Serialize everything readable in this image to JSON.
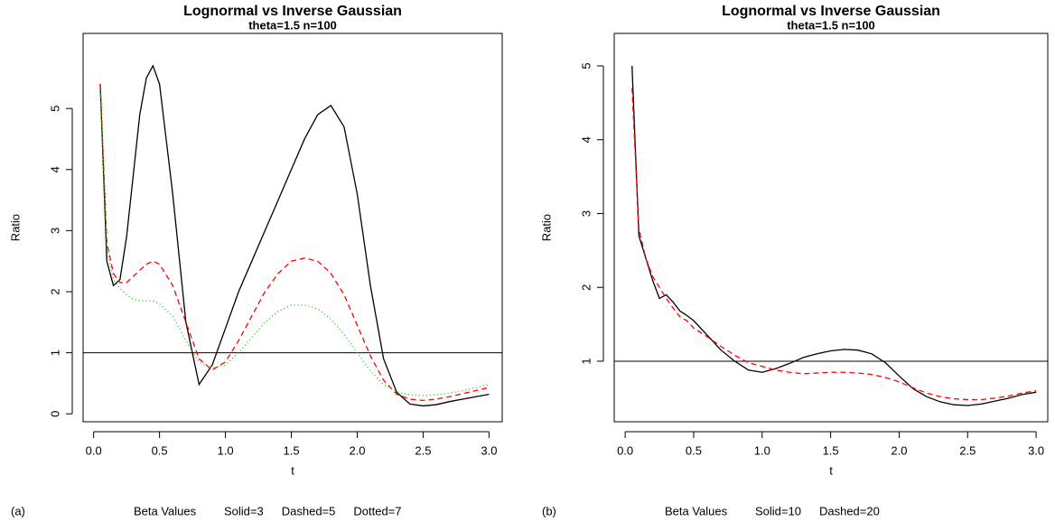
{
  "chart_data": [
    {
      "type": "line",
      "title": "Lognormal vs Inverse Gaussian",
      "subtitle": "theta=1.5    n=100",
      "x_label": "t",
      "y_label": "Ratio",
      "panel_label": "(a)",
      "legend_title": "Beta Values",
      "x": [
        0.05,
        0.1,
        0.15,
        0.2,
        0.25,
        0.3,
        0.35,
        0.4,
        0.45,
        0.5,
        0.6,
        0.7,
        0.8,
        0.9,
        1.0,
        1.1,
        1.2,
        1.3,
        1.4,
        1.5,
        1.6,
        1.7,
        1.8,
        1.9,
        2.0,
        2.1,
        2.2,
        2.3,
        2.4,
        2.5,
        2.6,
        2.7,
        2.8,
        2.9,
        3.0
      ],
      "series": [
        {
          "name": "Solid=3",
          "color": "#000000",
          "line_style": "solid",
          "values": [
            5.4,
            2.5,
            2.1,
            2.2,
            2.9,
            3.9,
            4.9,
            5.5,
            5.7,
            5.4,
            3.6,
            1.5,
            0.48,
            0.8,
            1.4,
            2.0,
            2.5,
            3.0,
            3.5,
            4.0,
            4.5,
            4.9,
            5.05,
            4.7,
            3.6,
            2.1,
            0.9,
            0.35,
            0.16,
            0.13,
            0.15,
            0.2,
            0.24,
            0.28,
            0.32
          ]
        },
        {
          "name": "Dashed=5",
          "color": "#ff0000",
          "line_style": "dashed",
          "values": [
            5.4,
            2.8,
            2.3,
            2.15,
            2.15,
            2.25,
            2.35,
            2.45,
            2.5,
            2.45,
            2.1,
            1.5,
            0.9,
            0.72,
            0.85,
            1.2,
            1.6,
            2.0,
            2.3,
            2.5,
            2.55,
            2.5,
            2.3,
            1.95,
            1.45,
            0.95,
            0.55,
            0.32,
            0.24,
            0.22,
            0.24,
            0.28,
            0.33,
            0.38,
            0.43
          ]
        },
        {
          "name": "Dotted=7",
          "color": "#00cd00",
          "line_style": "dotted",
          "values": [
            5.3,
            2.7,
            2.2,
            2.05,
            1.95,
            1.88,
            1.85,
            1.85,
            1.85,
            1.8,
            1.6,
            1.2,
            0.85,
            0.75,
            0.8,
            1.0,
            1.25,
            1.5,
            1.68,
            1.78,
            1.78,
            1.72,
            1.55,
            1.3,
            1.0,
            0.7,
            0.48,
            0.36,
            0.31,
            0.3,
            0.31,
            0.34,
            0.38,
            0.43,
            0.48
          ]
        }
      ],
      "hline": 1,
      "xlim": [
        -0.08,
        3.1
      ],
      "ylim": [
        -0.13,
        6.23
      ],
      "xticks": [
        {
          "value": 0,
          "label": "0.0"
        },
        0.5,
        {
          "value": 1,
          "label": "1.0"
        },
        1.5,
        {
          "value": 2,
          "label": "2.0"
        },
        2.5,
        {
          "value": 3,
          "label": "3.0"
        }
      ],
      "yticks": [
        0,
        1,
        2,
        3,
        4,
        5
      ]
    },
    {
      "type": "line",
      "title": "Lognormal vs Inverse Gaussian",
      "subtitle": "theta=1.5    n=100",
      "x_label": "t",
      "y_label": "Ratio",
      "panel_label": "(b)",
      "legend_title": "Beta Values",
      "x": [
        0.05,
        0.1,
        0.15,
        0.2,
        0.25,
        0.3,
        0.35,
        0.4,
        0.45,
        0.5,
        0.6,
        0.7,
        0.8,
        0.9,
        1.0,
        1.1,
        1.2,
        1.3,
        1.4,
        1.5,
        1.6,
        1.7,
        1.8,
        1.9,
        2.0,
        2.1,
        2.2,
        2.3,
        2.4,
        2.5,
        2.6,
        2.7,
        2.8,
        2.9,
        3.0
      ],
      "series": [
        {
          "name": "Solid=10",
          "color": "#000000",
          "line_style": "solid",
          "values": [
            5.0,
            2.7,
            2.4,
            2.1,
            1.85,
            1.9,
            1.8,
            1.68,
            1.62,
            1.55,
            1.35,
            1.15,
            1.0,
            0.88,
            0.85,
            0.9,
            0.97,
            1.05,
            1.1,
            1.14,
            1.16,
            1.15,
            1.1,
            0.98,
            0.8,
            0.63,
            0.52,
            0.45,
            0.41,
            0.4,
            0.42,
            0.46,
            0.5,
            0.55,
            0.58
          ]
        },
        {
          "name": "Dashed=20",
          "color": "#ff0000",
          "line_style": "dashed",
          "values": [
            4.7,
            2.8,
            2.4,
            2.15,
            2.0,
            1.85,
            1.72,
            1.6,
            1.55,
            1.45,
            1.33,
            1.2,
            1.08,
            0.98,
            0.93,
            0.88,
            0.85,
            0.83,
            0.84,
            0.85,
            0.85,
            0.84,
            0.82,
            0.78,
            0.72,
            0.64,
            0.57,
            0.52,
            0.49,
            0.48,
            0.48,
            0.5,
            0.53,
            0.57,
            0.6
          ]
        }
      ],
      "hline": 1,
      "xlim": [
        -0.08,
        3.085
      ],
      "ylim": [
        0.18,
        5.44
      ],
      "xticks": [
        {
          "value": 0,
          "label": "0.0"
        },
        0.5,
        {
          "value": 1,
          "label": "1.0"
        },
        1.5,
        {
          "value": 2,
          "label": "2.0"
        },
        2.5,
        {
          "value": 3,
          "label": "3.0"
        }
      ],
      "yticks": [
        1,
        2,
        3,
        4,
        5
      ]
    }
  ]
}
